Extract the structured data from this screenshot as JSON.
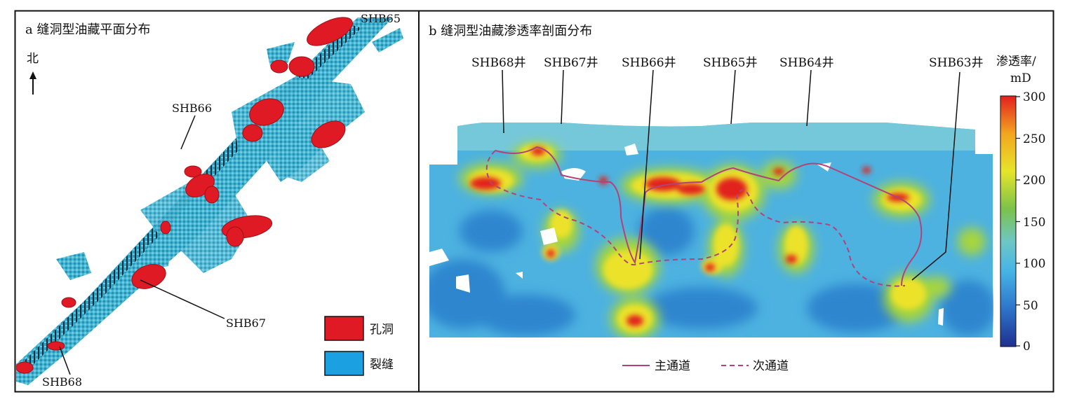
{
  "panel_a": {
    "title": "a 缝洞型油藏平面分布",
    "north": "北",
    "wells": [
      "SHB65",
      "SHB66",
      "SHB67",
      "SHB68"
    ],
    "legend": [
      {
        "label": "孔洞",
        "color": "#e01a25"
      },
      {
        "label": "裂缝",
        "color": "#1ba1e2"
      }
    ],
    "colors": {
      "fracture": "#3fb6d6",
      "fracture_light": "#7fd3e8",
      "vug": "#e01a25",
      "dark": "#15303a"
    }
  },
  "panel_b": {
    "title": "b 缝洞型油藏渗透率剖面分布",
    "wells": [
      "SHB68井",
      "SHB67井",
      "SHB66井",
      "SHB65井",
      "SHB64井",
      "SHB63井"
    ],
    "colorbar": {
      "title_line1": "渗透率/",
      "title_line2": "mD",
      "ticks": [
        "300",
        "250",
        "200",
        "150",
        "100",
        "50",
        "0"
      ],
      "stops": [
        "#1f2f8f",
        "#2d74c9",
        "#46b4e6",
        "#6ec7c4",
        "#7cc24a",
        "#e6e52a",
        "#f3a51f",
        "#e2201f"
      ]
    },
    "legend": [
      {
        "label": "主通道",
        "style": "solid"
      },
      {
        "label": "次通道",
        "style": "dashed"
      }
    ],
    "channel_color": "#b0447a"
  }
}
